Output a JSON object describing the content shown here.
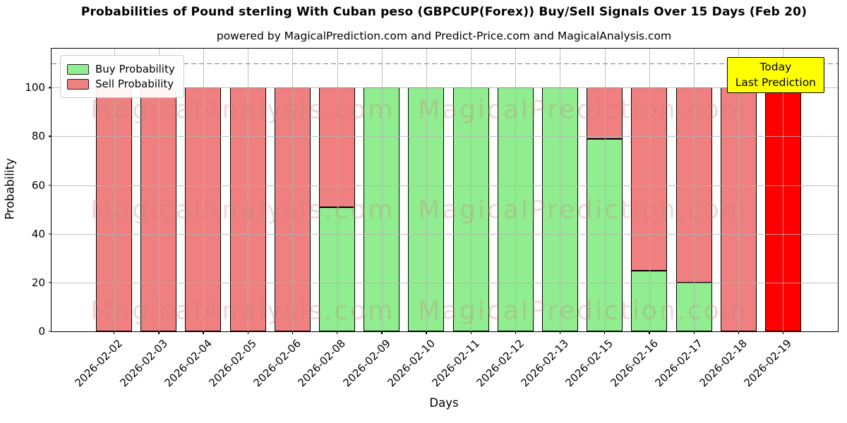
{
  "chart_data": {
    "type": "bar",
    "stacked": true,
    "title": "Probabilities of Pound sterling With Cuban peso (GBPCUP(Forex)) Buy/Sell Signals Over 15 Days (Feb 20)",
    "subtitle": "powered by MagicalPrediction.com and Predict-Price.com and MagicalAnalysis.com",
    "xlabel": "Days",
    "ylabel": "Probability",
    "ylim": [
      0,
      116
    ],
    "yticks": [
      0,
      20,
      40,
      60,
      80,
      100
    ],
    "grid": true,
    "dashed_threshold_y": 110,
    "categories": [
      "2026-02-02",
      "2026-02-03",
      "2026-02-04",
      "2026-02-05",
      "2026-02-06",
      "2026-02-08",
      "2026-02-09",
      "2026-02-10",
      "2026-02-11",
      "2026-02-12",
      "2026-02-13",
      "2026-02-15",
      "2026-02-16",
      "2026-02-17",
      "2026-02-18",
      "2026-02-19"
    ],
    "series": [
      {
        "name": "Buy Probability",
        "color": "#90EE90",
        "values": [
          0,
          0,
          0,
          0,
          0,
          51,
          100,
          100,
          100,
          100,
          100,
          79,
          25,
          20,
          0,
          0
        ]
      },
      {
        "name": "Sell Probability",
        "color": "#F08080",
        "values": [
          100,
          100,
          100,
          100,
          100,
          49,
          0,
          0,
          0,
          0,
          0,
          21,
          75,
          80,
          100,
          100
        ]
      }
    ],
    "highlight": {
      "index": 15,
      "color": "#FF0000",
      "meaning": "Today / Last Prediction bar"
    },
    "legend": {
      "position": "upper-left"
    },
    "annotation_box": {
      "lines": [
        "Today",
        "Last Prediction"
      ],
      "bg_color": "#FFFF00"
    },
    "watermarks": [
      "MagicalAnalysis.com",
      "MagicalPrediction.com"
    ],
    "bar_edge_color": "#000000"
  }
}
